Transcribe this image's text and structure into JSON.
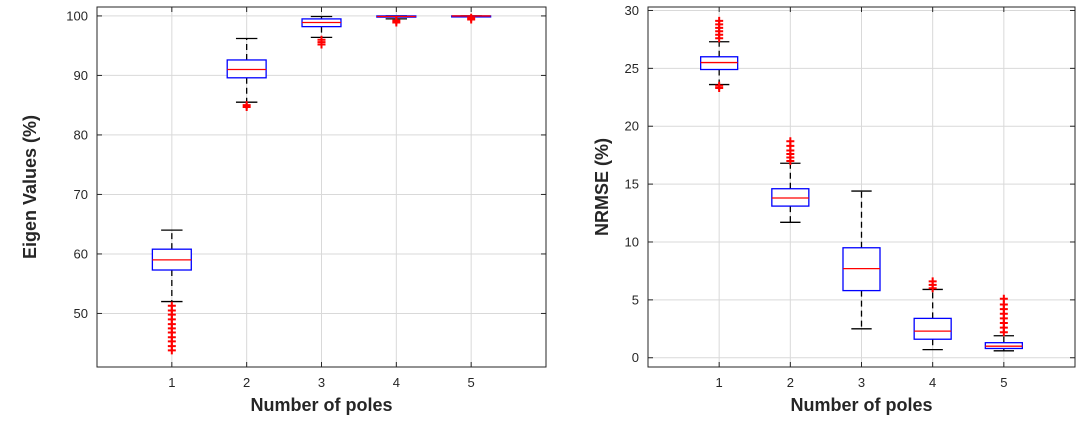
{
  "colors": {
    "box": "#0000ff",
    "median": "#ff0000",
    "whisker": "#000000",
    "outlier": "#ff0000",
    "grid": "#d9d9d9",
    "axis": "#262626"
  },
  "chart_data": [
    {
      "type": "box",
      "xlabel": "Number of poles",
      "ylabel": "Eigen Values (%)",
      "categories": [
        "1",
        "2",
        "3",
        "4",
        "5"
      ],
      "ylim": [
        41,
        101.5
      ],
      "yticks": [
        50,
        60,
        70,
        80,
        90,
        100
      ],
      "grid": true,
      "boxes": [
        {
          "q1": 57.3,
          "median": 59.0,
          "q3": 60.8,
          "whisker_low": 52.0,
          "whisker_high": 64.0,
          "outliers": [
            43.8,
            44.5,
            45.3,
            46.0,
            46.8,
            47.5,
            48.2,
            49.0,
            49.8,
            50.5,
            51.3
          ]
        },
        {
          "q1": 89.6,
          "median": 91.0,
          "q3": 92.6,
          "whisker_low": 85.5,
          "whisker_high": 96.2,
          "outliers": [
            84.7,
            85.0
          ]
        },
        {
          "q1": 98.2,
          "median": 98.9,
          "q3": 99.5,
          "whisker_low": 96.4,
          "whisker_high": 99.9,
          "outliers": [
            95.2,
            95.6,
            96.0
          ]
        },
        {
          "q1": 99.8,
          "median": 99.9,
          "q3": 100.0,
          "whisker_low": 99.5,
          "whisker_high": 100.0,
          "outliers": [
            98.9,
            99.2
          ]
        },
        {
          "q1": 99.95,
          "median": 100.0,
          "q3": 100.0,
          "whisker_low": 99.9,
          "whisker_high": 100.0,
          "outliers": [
            99.4,
            99.7
          ]
        }
      ]
    },
    {
      "type": "box",
      "xlabel": "Number of poles",
      "ylabel": "NRMSE (%)",
      "categories": [
        "1",
        "2",
        "3",
        "4",
        "5"
      ],
      "ylim": [
        -0.8,
        30.3
      ],
      "yticks": [
        0,
        5,
        10,
        15,
        20,
        25,
        30
      ],
      "grid": true,
      "boxes": [
        {
          "q1": 24.9,
          "median": 25.5,
          "q3": 26.0,
          "whisker_low": 23.6,
          "whisker_high": 27.3,
          "outliers": [
            23.3,
            23.5,
            27.6,
            27.9,
            28.2,
            28.5,
            28.8,
            29.1
          ]
        },
        {
          "q1": 13.1,
          "median": 13.8,
          "q3": 14.6,
          "whisker_low": 11.7,
          "whisker_high": 16.8,
          "outliers": [
            17.0,
            17.3,
            17.6,
            17.9,
            18.3,
            18.7
          ]
        },
        {
          "q1": 5.8,
          "median": 7.7,
          "q3": 9.5,
          "whisker_low": 2.5,
          "whisker_high": 14.4,
          "outliers": []
        },
        {
          "q1": 1.6,
          "median": 2.3,
          "q3": 3.4,
          "whisker_low": 0.7,
          "whisker_high": 5.9,
          "outliers": [
            6.0,
            6.3,
            6.6
          ]
        },
        {
          "q1": 0.8,
          "median": 1.0,
          "q3": 1.3,
          "whisker_low": 0.6,
          "whisker_high": 1.9,
          "outliers": [
            2.2,
            2.6,
            3.0,
            3.4,
            3.8,
            4.2,
            4.6,
            5.1
          ]
        }
      ]
    }
  ]
}
